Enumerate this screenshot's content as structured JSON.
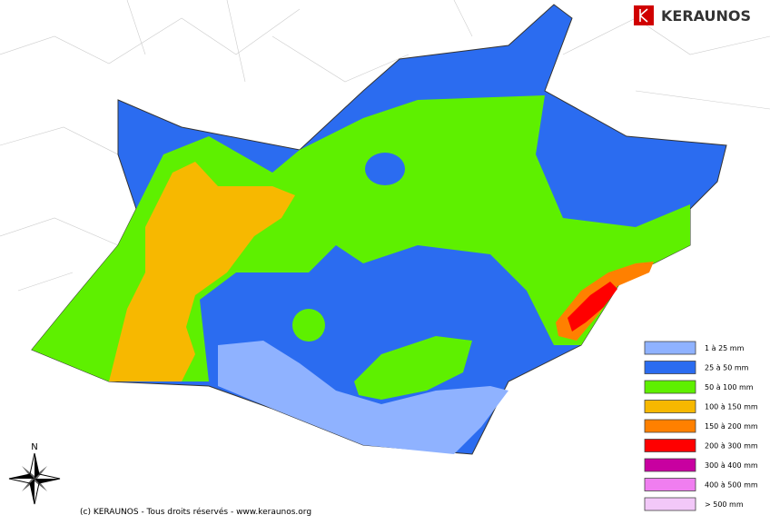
{
  "brand": "KERAUNOS",
  "compass": "N",
  "copyright": "(c) KERAUNOS - Tous droits réservés - www.keraunos.org",
  "legend": [
    {
      "label": "1 à 25 mm",
      "color": "#8fb2ff"
    },
    {
      "label": "25 à 50 mm",
      "color": "#2b6cf0"
    },
    {
      "label": "50 à 100 mm",
      "color": "#5ef000"
    },
    {
      "label": "100 à 150 mm",
      "color": "#f7b800"
    },
    {
      "label": "150 à 200 mm",
      "color": "#ff8000"
    },
    {
      "label": "200 à 300 mm",
      "color": "#ff0000"
    },
    {
      "label": "300 à 400 mm",
      "color": "#c800a0"
    },
    {
      "label": "400 à 500 mm",
      "color": "#f07ef0"
    },
    {
      "label": "> 500 mm",
      "color": "#f2c8f8"
    }
  ]
}
